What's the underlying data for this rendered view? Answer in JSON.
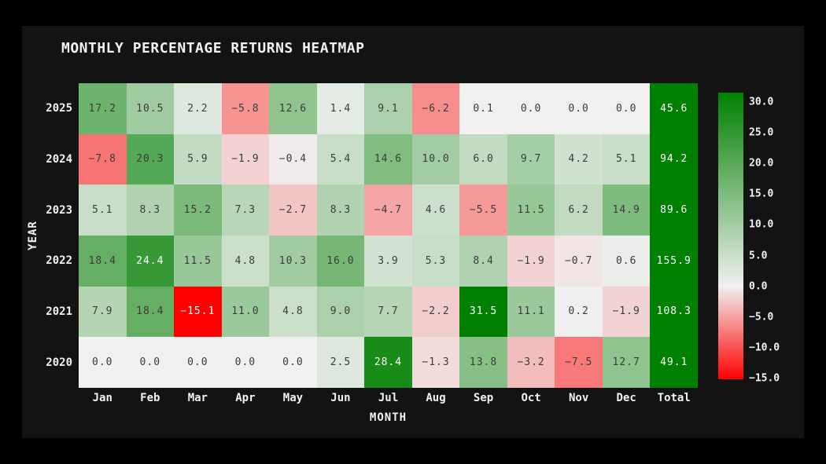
{
  "title": "MONTHLY PERCENTAGE RETURNS HEATMAP",
  "chart_data": {
    "type": "heatmap",
    "title": "MONTHLY PERCENTAGE RETURNS HEATMAP",
    "xlabel": "MONTH",
    "ylabel": "YEAR",
    "columns": [
      "Jan",
      "Feb",
      "Mar",
      "Apr",
      "May",
      "Jun",
      "Jul",
      "Aug",
      "Sep",
      "Oct",
      "Nov",
      "Dec",
      "Total"
    ],
    "rows": [
      "2025",
      "2024",
      "2023",
      "2022",
      "2021",
      "2020"
    ],
    "values": [
      [
        17.2,
        10.5,
        2.2,
        -5.8,
        12.6,
        1.4,
        9.1,
        -6.2,
        0.1,
        0.0,
        0.0,
        0.0,
        45.6
      ],
      [
        -7.8,
        20.3,
        5.9,
        -1.9,
        -0.4,
        5.4,
        14.6,
        10.0,
        6.0,
        9.7,
        4.2,
        5.1,
        94.2
      ],
      [
        5.1,
        8.3,
        15.2,
        7.3,
        -2.7,
        8.3,
        -4.7,
        4.6,
        -5.5,
        11.5,
        6.2,
        14.9,
        89.6
      ],
      [
        18.4,
        24.4,
        11.5,
        4.8,
        10.3,
        16.0,
        3.9,
        5.3,
        8.4,
        -1.9,
        -0.7,
        0.6,
        155.9
      ],
      [
        7.9,
        18.4,
        -15.1,
        11.0,
        4.8,
        9.0,
        7.7,
        -2.2,
        31.5,
        11.1,
        0.2,
        -1.9,
        108.3
      ],
      [
        0.0,
        0.0,
        0.0,
        0.0,
        0.0,
        2.5,
        28.4,
        -1.3,
        13.8,
        -3.2,
        -7.5,
        12.7,
        49.1
      ]
    ],
    "value_format": "one-decimal, unicode minus",
    "colorbar_ticks": [
      30.0,
      25.0,
      20.0,
      15.0,
      10.0,
      5.0,
      0.0,
      -5.0,
      -10.0,
      -15.0
    ],
    "vmin": -15.1,
    "vmax": 31.5,
    "vcenter": 0,
    "legend_position": "right-colorbar",
    "grid": false,
    "colors": {
      "positive_max": "#008000",
      "midpoint": "#f0f0f0",
      "negative_max": "#ff0000",
      "figure_background": "#131313",
      "page_background": "#000000",
      "tick_text": "#f2f2f2",
      "cell_text_dark": "#3c3c3c",
      "cell_text_light": "#ffffff"
    }
  }
}
